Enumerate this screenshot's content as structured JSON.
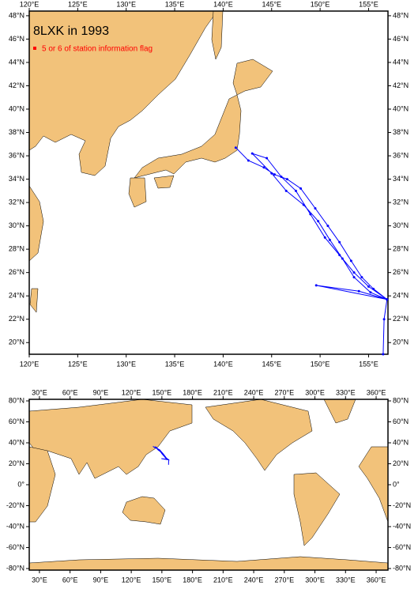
{
  "title": "8LXK in 1993",
  "legend": "5 or 6 of station information flag",
  "legend_color": "#ff0000",
  "track_color": "#0000ff",
  "regional_map": {
    "lon_range": [
      120,
      157
    ],
    "lat_range": [
      19,
      48.4
    ],
    "lon_ticks": [
      {
        "value": 120,
        "label": "120°E"
      },
      {
        "value": 125,
        "label": "125°E"
      },
      {
        "value": 130,
        "label": "130°E"
      },
      {
        "value": 135,
        "label": "135°E"
      },
      {
        "value": 140,
        "label": "140°E"
      },
      {
        "value": 145,
        "label": "145°E"
      },
      {
        "value": 150,
        "label": "150°E"
      },
      {
        "value": 155,
        "label": "155°E"
      }
    ],
    "lat_ticks": [
      {
        "value": 20,
        "label": "20°N"
      },
      {
        "value": 22,
        "label": "22°N"
      },
      {
        "value": 24,
        "label": "24°N"
      },
      {
        "value": 26,
        "label": "26°N"
      },
      {
        "value": 28,
        "label": "28°N"
      },
      {
        "value": 30,
        "label": "30°N"
      },
      {
        "value": 32,
        "label": "32°N"
      },
      {
        "value": 34,
        "label": "34°N"
      },
      {
        "value": 36,
        "label": "36°N"
      },
      {
        "value": 38,
        "label": "38°N"
      },
      {
        "value": 40,
        "label": "40°N"
      },
      {
        "value": 42,
        "label": "42°N"
      },
      {
        "value": 44,
        "label": "44°N"
      },
      {
        "value": 46,
        "label": "46°N"
      },
      {
        "value": 48,
        "label": "48°N"
      }
    ]
  },
  "global_map": {
    "lon_range": [
      20,
      371.6
    ],
    "lat_range": [
      -81.5,
      81.5
    ],
    "lon_ticks": [
      {
        "value": 30,
        "label": "30°E"
      },
      {
        "value": 60,
        "label": "60°E"
      },
      {
        "value": 90,
        "label": "90°E"
      },
      {
        "value": 120,
        "label": "120°E"
      },
      {
        "value": 150,
        "label": "150°E"
      },
      {
        "value": 180,
        "label": "180°E"
      },
      {
        "value": 210,
        "label": "210°E"
      },
      {
        "value": 240,
        "label": "240°E"
      },
      {
        "value": 270,
        "label": "270°E"
      },
      {
        "value": 300,
        "label": "300°E"
      },
      {
        "value": 330,
        "label": "330°E"
      },
      {
        "value": 360,
        "label": "360°E"
      }
    ],
    "lat_ticks": [
      {
        "value": -80,
        "label": "-80°N"
      },
      {
        "value": -60,
        "label": "-60°N"
      },
      {
        "value": -40,
        "label": "-40°N"
      },
      {
        "value": -20,
        "label": "-20°N"
      },
      {
        "value": 0,
        "label": "0°"
      },
      {
        "value": 20,
        "label": "20°N"
      },
      {
        "value": 40,
        "label": "40°N"
      },
      {
        "value": 60,
        "label": "60°N"
      },
      {
        "value": 80,
        "label": "80°N"
      }
    ]
  },
  "track": {
    "lon": [
      141.3,
      142.6,
      144.2,
      145.3,
      146.6,
      148.0,
      149.5,
      150.8,
      152.0,
      153.2,
      154.3,
      155.5,
      156.9,
      155.2,
      153.5,
      152.3,
      151.0,
      149.8,
      148.3,
      146.5,
      145.0,
      143.0,
      144.5,
      146.0,
      147.5,
      149.0,
      150.5,
      152.0,
      153.5,
      155.0,
      156.9,
      154.0,
      149.6,
      156.9,
      156.6,
      156.5
    ],
    "lat": [
      36.7,
      35.6,
      35.0,
      34.4,
      34.0,
      33.2,
      31.5,
      30.0,
      28.6,
      27.0,
      25.6,
      24.6,
      23.7,
      24.3,
      25.6,
      27.2,
      28.8,
      30.4,
      31.8,
      33.0,
      34.5,
      36.2,
      35.8,
      34.2,
      33.0,
      31.0,
      29.0,
      27.5,
      26.0,
      24.8,
      23.7,
      24.4,
      24.9,
      23.7,
      22.0,
      19.0
    ]
  }
}
